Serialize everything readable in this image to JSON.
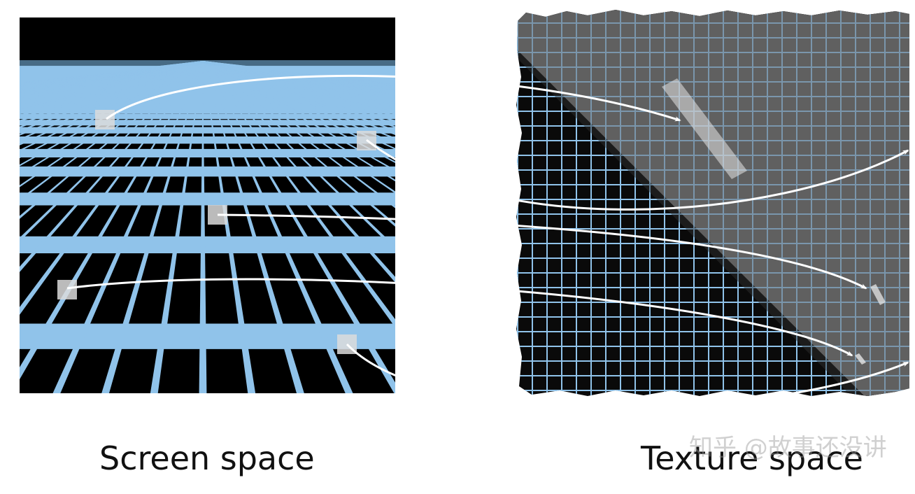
{
  "captions": {
    "left": "Screen space",
    "right": "Texture space"
  },
  "watermark": "知乎 @故事还没讲",
  "colors": {
    "grid_line": "#90c3ea",
    "background_black": "#000000",
    "texture_grey": "#5a5a5a",
    "texture_dark": "#222222",
    "arrow": "#ffffff",
    "sample": "#d9d9d9"
  },
  "icons": [
    "sample-pixel-square",
    "footprint-quad",
    "mapping-arrow"
  ]
}
